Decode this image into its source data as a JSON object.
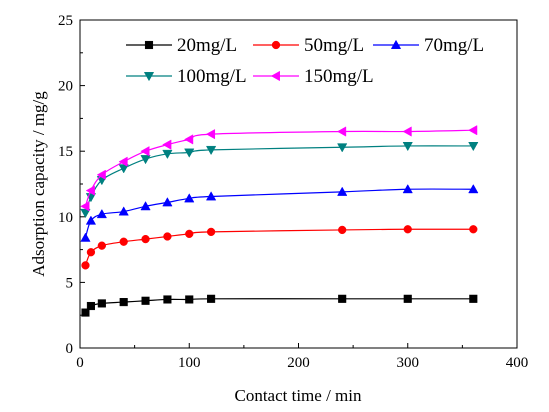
{
  "chart_data": {
    "type": "line",
    "title": "",
    "xlabel": "Contact time / min",
    "ylabel": "Adsorption capacity / mg/g",
    "xlim": [
      0,
      400
    ],
    "ylim": [
      0,
      25
    ],
    "xticks": [
      0,
      100,
      200,
      300,
      400
    ],
    "yticks": [
      0,
      5,
      10,
      15,
      20,
      25
    ],
    "xtick_labels": [
      "0",
      "100",
      "200",
      "300",
      "400"
    ],
    "ytick_labels": [
      "0",
      "5",
      "10",
      "15",
      "20",
      "25"
    ],
    "grid": false,
    "legend_position": "top",
    "series": [
      {
        "name": "20mg/L",
        "color": "#000000",
        "marker": "square",
        "x": [
          5,
          10,
          20,
          40,
          60,
          80,
          100,
          120,
          240,
          300,
          360
        ],
        "y": [
          2.7,
          3.2,
          3.4,
          3.5,
          3.6,
          3.7,
          3.7,
          3.75,
          3.75,
          3.75,
          3.75
        ]
      },
      {
        "name": "50mg/L",
        "color": "#ff0000",
        "marker": "circle",
        "x": [
          5,
          10,
          20,
          40,
          60,
          80,
          100,
          120,
          240,
          300,
          360
        ],
        "y": [
          6.3,
          7.3,
          7.8,
          8.1,
          8.3,
          8.5,
          8.7,
          8.85,
          9.0,
          9.05,
          9.05
        ]
      },
      {
        "name": "70mg/L",
        "color": "#0000ff",
        "marker": "triangle-up",
        "x": [
          5,
          10,
          20,
          40,
          60,
          80,
          100,
          120,
          240,
          300,
          360
        ],
        "y": [
          8.4,
          9.7,
          10.2,
          10.4,
          10.8,
          11.1,
          11.4,
          11.55,
          11.9,
          12.1,
          12.1
        ]
      },
      {
        "name": "100mg/L",
        "color": "#008080",
        "marker": "triangle-down",
        "x": [
          5,
          10,
          20,
          40,
          60,
          80,
          100,
          120,
          240,
          300,
          360
        ],
        "y": [
          10.3,
          11.5,
          12.8,
          13.7,
          14.4,
          14.8,
          14.9,
          15.1,
          15.3,
          15.4,
          15.4
        ]
      },
      {
        "name": "150mg/L",
        "color": "#ff00ff",
        "marker": "triangle-left",
        "x": [
          5,
          10,
          20,
          40,
          60,
          80,
          100,
          120,
          240,
          300,
          360
        ],
        "y": [
          10.8,
          12.0,
          13.2,
          14.2,
          15.0,
          15.5,
          15.9,
          16.3,
          16.5,
          16.5,
          16.6
        ]
      }
    ]
  }
}
